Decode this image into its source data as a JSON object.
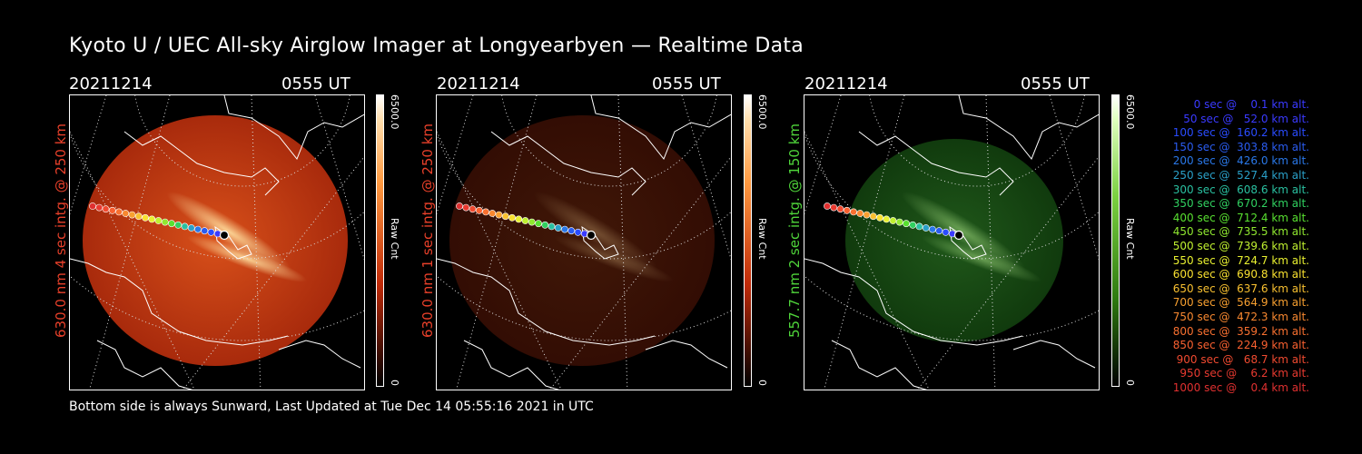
{
  "title": "Kyoto U / UEC All-sky Airglow Imager at Longyearbyen — Realtime Data",
  "panels": [
    {
      "date": "20211214",
      "time": "0555 UT",
      "label": "630.0 nm 4 sec intg. @ 250 km",
      "label_color": "#e8402a",
      "cbar_max": "6500.0",
      "cbar_min": "0",
      "cbar_unit": "Raw Cnt",
      "theme": "red",
      "brightness": 1.0
    },
    {
      "date": "20211214",
      "time": "0555 UT",
      "label": "630.0 nm 1 sec intg. @ 250 km",
      "label_color": "#e8402a",
      "cbar_max": "6500.0",
      "cbar_min": "0",
      "cbar_unit": "Raw Cnt",
      "theme": "red",
      "brightness": 0.3
    },
    {
      "date": "20211214",
      "time": "0555 UT",
      "label": "557.7 nm 2 sec intg. @ 150 km",
      "label_color": "#4fd43a",
      "cbar_max": "6500.0",
      "cbar_min": "0",
      "cbar_unit": "Raw Cnt",
      "theme": "green",
      "brightness": 0.55
    }
  ],
  "footer": "Bottom side is always Sunward, Last Updated at Tue Dec 14 05:55:16 2021 in UTC",
  "legend": [
    {
      "text": "   0 sec @    0.1 km alt.",
      "color": "#3a3aff"
    },
    {
      "text": "  50 sec @   52.0 km alt.",
      "color": "#3a3aff"
    },
    {
      "text": " 100 sec @  160.2 km alt.",
      "color": "#2a4cff"
    },
    {
      "text": " 150 sec @  303.8 km alt.",
      "color": "#2a5cf0"
    },
    {
      "text": " 200 sec @  426.0 km alt.",
      "color": "#2a78e8"
    },
    {
      "text": " 250 sec @  527.4 km alt.",
      "color": "#2aa0c8"
    },
    {
      "text": " 300 sec @  608.6 km alt.",
      "color": "#2ac0a0"
    },
    {
      "text": " 350 sec @  670.2 km alt.",
      "color": "#30d060"
    },
    {
      "text": " 400 sec @  712.4 km alt.",
      "color": "#58e030"
    },
    {
      "text": " 450 sec @  735.5 km alt.",
      "color": "#90e830"
    },
    {
      "text": " 500 sec @  739.6 km alt.",
      "color": "#c0f030"
    },
    {
      "text": " 550 sec @  724.7 km alt.",
      "color": "#e8f030"
    },
    {
      "text": " 600 sec @  690.8 km alt.",
      "color": "#f8e030"
    },
    {
      "text": " 650 sec @  637.6 km alt.",
      "color": "#f8c030"
    },
    {
      "text": " 700 sec @  564.9 km alt.",
      "color": "#f8a030"
    },
    {
      "text": " 750 sec @  472.3 km alt.",
      "color": "#f88830"
    },
    {
      "text": " 800 sec @  359.2 km alt.",
      "color": "#f87030"
    },
    {
      "text": " 850 sec @  224.9 km alt.",
      "color": "#f86030"
    },
    {
      "text": " 900 sec @   68.7 km alt.",
      "color": "#f04a30"
    },
    {
      "text": " 950 sec @    6.2 km alt.",
      "color": "#e83a30"
    },
    {
      "text": "1000 sec @    0.4 km alt.",
      "color": "#e03030"
    }
  ],
  "track_colors": [
    "#e03030",
    "#e83a30",
    "#f04a30",
    "#f86030",
    "#f87030",
    "#f88830",
    "#f8a030",
    "#f8c030",
    "#f8e030",
    "#e8f030",
    "#c0f030",
    "#90e830",
    "#58e030",
    "#30d060",
    "#2ac0a0",
    "#2aa0c8",
    "#2a78e8",
    "#2a5cf0",
    "#2a4cff",
    "#3a3aff",
    "#3a3aff"
  ]
}
